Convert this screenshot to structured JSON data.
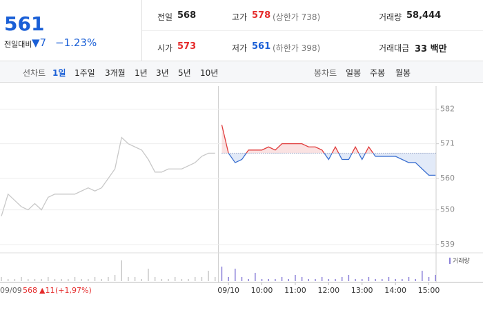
{
  "header": {
    "price": "561",
    "change_label": "전일대비",
    "change": "▼7",
    "change_pct": "−1.23%",
    "stats": [
      {
        "label": "전일",
        "value": "568"
      },
      {
        "label": "고가",
        "value": "578",
        "note": "(상한가 738)"
      },
      {
        "label": "거래량",
        "value": "58,444"
      },
      {
        "label": "시가",
        "value": "573"
      },
      {
        "label": "저가",
        "value": "561",
        "note": "(하한가 398)"
      },
      {
        "label": "거래대금",
        "value": "33 백만"
      }
    ]
  },
  "toolbar": {
    "line_label": "선차트",
    "line_periods": [
      "1일",
      "1주일",
      "3개월",
      "1년",
      "3년",
      "5년",
      "10년"
    ],
    "candle_label": "봉차트",
    "candle_periods": [
      "일봉",
      "주봉",
      "월봉"
    ]
  },
  "footer": {
    "date": "09/09",
    "price": "568",
    "change": "▲11",
    "change_pct": "(+1,97%)"
  },
  "chart_data": {
    "type": "line",
    "categories": [
      null,
      null,
      null,
      null,
      null,
      null,
      null,
      null,
      null,
      null,
      null,
      null,
      null,
      null,
      null,
      null,
      null,
      null,
      null,
      null,
      null,
      null,
      null,
      null,
      null,
      null,
      null,
      null,
      null,
      null,
      null,
      null,
      null,
      null,
      "09/10",
      null,
      null,
      null,
      null,
      "10:00",
      null,
      null,
      null,
      null,
      "11:00",
      null,
      null,
      null,
      null,
      "12:00",
      null,
      null,
      null,
      null,
      "13:00",
      null,
      null,
      null,
      null,
      "14:00",
      null,
      null,
      null,
      null,
      "15:00",
      null
    ],
    "series": [
      {
        "color": "#c8c8c8",
        "values": [
          548,
          555,
          553,
          551,
          550,
          552,
          550,
          554,
          555,
          555,
          555,
          555,
          556,
          557,
          556,
          557,
          560,
          563,
          573,
          571,
          570,
          569,
          566,
          562,
          562,
          563,
          563,
          563,
          564,
          565,
          567,
          568,
          568,
          null,
          null,
          null,
          null,
          null,
          null,
          null,
          null,
          null,
          null,
          null,
          null,
          null,
          null,
          null,
          null,
          null,
          null,
          null,
          null,
          null,
          null,
          null,
          null,
          null,
          null,
          null,
          null,
          null,
          null,
          null,
          null,
          null
        ]
      },
      {
        "color": "#e03b3b",
        "color_below": "#3a6fd0",
        "values": [
          null,
          null,
          null,
          null,
          null,
          null,
          null,
          null,
          null,
          null,
          null,
          null,
          null,
          null,
          null,
          null,
          null,
          null,
          null,
          null,
          null,
          null,
          null,
          null,
          null,
          null,
          null,
          null,
          null,
          null,
          null,
          null,
          null,
          577,
          568,
          565,
          566,
          569,
          569,
          569,
          570,
          569,
          571,
          571,
          571,
          571,
          570,
          570,
          569,
          566,
          570,
          566,
          566,
          570,
          566,
          570,
          567,
          567,
          567,
          567,
          566,
          565,
          565,
          563,
          561,
          561
        ]
      }
    ],
    "base": 568,
    "ylim": [
      536.8,
      589.3
    ],
    "yticks": [
      539,
      550,
      560,
      571,
      582
    ],
    "grid": true,
    "volume": {
      "name": "거래량",
      "color": "#8a7fd8",
      "ylim": [
        0,
        12
      ],
      "values": [
        2,
        1,
        1,
        2,
        1,
        1,
        1,
        2,
        1,
        1,
        1,
        2,
        1,
        1,
        2,
        1,
        2,
        3,
        10,
        2,
        2,
        1,
        6,
        2,
        1,
        1,
        2,
        1,
        1,
        2,
        2,
        5,
        2,
        7,
        2,
        6,
        2,
        1,
        4,
        1,
        1,
        1,
        2,
        1,
        3,
        2,
        1,
        1,
        2,
        1,
        1,
        2,
        3,
        1,
        1,
        2,
        1,
        1,
        2,
        1,
        1,
        2,
        1,
        5,
        2,
        3
      ]
    }
  }
}
